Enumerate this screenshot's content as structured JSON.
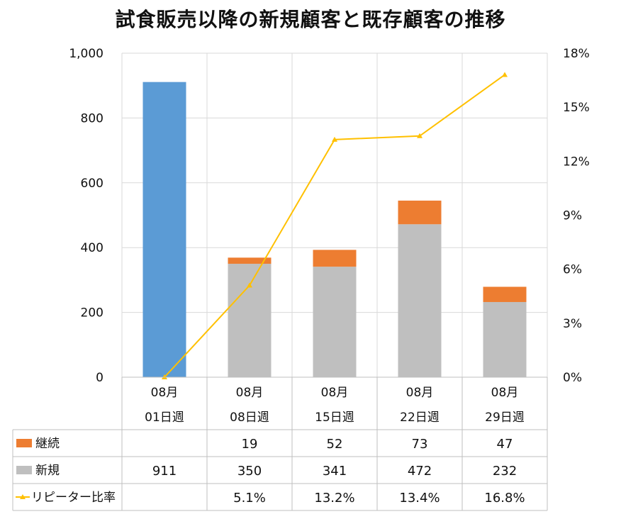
{
  "chart_data": {
    "type": "bar",
    "title": "試食販売以降の新規顧客と既存顧客の推移",
    "categories": [
      [
        "08月",
        "01日週"
      ],
      [
        "08月",
        "08日週"
      ],
      [
        "08月",
        "15日週"
      ],
      [
        "08月",
        "22日週"
      ],
      [
        "08月",
        "29日週"
      ]
    ],
    "series": [
      {
        "name": "継続",
        "type": "bar",
        "stack": true,
        "color": "#ED7D31",
        "values": [
          null,
          19,
          52,
          73,
          47
        ],
        "labels": [
          "",
          "19",
          "52",
          "73",
          "47"
        ]
      },
      {
        "name": "新規",
        "type": "bar",
        "stack": true,
        "color": "#BFBFBF",
        "first_bar_color": "#5B9BD5",
        "values": [
          911,
          350,
          341,
          472,
          232
        ],
        "labels": [
          "911",
          "350",
          "341",
          "472",
          "232"
        ]
      },
      {
        "name": "リピーター比率",
        "type": "line",
        "axis": "right",
        "color": "#FFC000",
        "values": [
          0,
          5.1,
          13.2,
          13.4,
          16.8
        ],
        "labels": [
          "",
          "5.1%",
          "13.2%",
          "13.4%",
          "16.8%"
        ]
      }
    ],
    "y_left": {
      "min": 0,
      "max": 1000,
      "ticks": [
        "0",
        "200",
        "400",
        "600",
        "800",
        "1,000"
      ],
      "tick_values": [
        0,
        200,
        400,
        600,
        800,
        1000
      ]
    },
    "y_right": {
      "min": 0,
      "max": 18,
      "ticks": [
        "0%",
        "3%",
        "6%",
        "9%",
        "12%",
        "15%",
        "18%"
      ],
      "tick_values": [
        0,
        3,
        6,
        9,
        12,
        15,
        18
      ]
    },
    "grid": true,
    "legend": "data-table"
  }
}
